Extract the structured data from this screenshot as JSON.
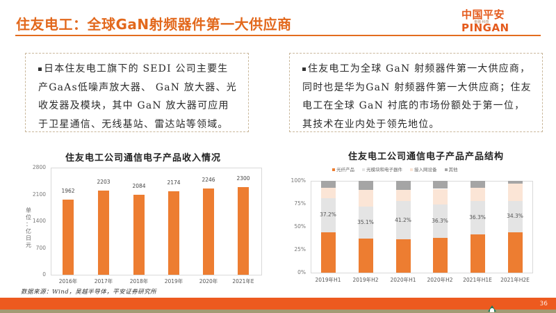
{
  "header": {
    "title": "住友电工：全球GaN射频器件第一大供应商",
    "logo_main": "中国平安 PINGAN",
    "logo_sub": "金融·科技"
  },
  "boxes": [
    {
      "text": "日本住友电工旗下的 SEDI 公司主要生产GaAs低噪声放大器、 GaN 放大器、光收发器及模块，其中 GaN 放大器可应用于卫星通信、无线基站、雷达站等领域。"
    },
    {
      "text": "住友电工为全球 GaN 射频器件第一大供应商，同时也是华为GaN 射频器件第一大供应商；住友电工在全球 GaN 衬底的市场份额处于第一位，其技术在业内处于领先地位。"
    }
  ],
  "chart_data": [
    {
      "type": "bar",
      "title": "住友电工公司通信电子产品收入情况",
      "categories": [
        "2016年",
        "2017年",
        "2018年",
        "2019年",
        "2020年",
        "2021年E"
      ],
      "values": [
        1962,
        2203,
        2084,
        2174,
        2246,
        2300
      ],
      "value_labels": [
        "1962",
        "2203",
        "2084",
        "2174",
        "2246",
        "2300"
      ],
      "xlabel": "",
      "ylabel": "单位：亿日元",
      "ylim": [
        0,
        2800
      ],
      "yticks": [
        "2800",
        "2100",
        "1400",
        "700",
        "0"
      ],
      "color": "#ed7d31",
      "grid": false
    },
    {
      "type": "bar",
      "stacked": true,
      "percent": true,
      "title": "住友电工公司通信电子产品产品结构",
      "categories": [
        "2019年H1",
        "2019年H2",
        "2020年H1",
        "2020年H2",
        "2021年H1E",
        "2021年H2E"
      ],
      "series": [
        {
          "name": "光纤产品",
          "color": "#ed7d31",
          "values": [
            44,
            37,
            36.5,
            38,
            42,
            44
          ]
        },
        {
          "name": "光模块和电子器件",
          "color": "#e4e4e4",
          "values": [
            37.2,
            35.1,
            41.2,
            36.3,
            36.3,
            34.3
          ]
        },
        {
          "name": "接入网设备",
          "color": "#fbe5d6",
          "values": [
            11,
            18,
            12.5,
            17,
            14,
            19
          ]
        },
        {
          "name": "其他",
          "color": "#a5a5a5",
          "values": [
            7.8,
            9.9,
            9.8,
            8.7,
            7.7,
            2.7
          ]
        }
      ],
      "segment_labels": [
        "37.2%",
        "35.1%",
        "41.2%",
        "36.3%",
        "36.3%",
        "34.3%"
      ],
      "yticks": [
        "100%",
        "75%",
        "50%",
        "25%",
        "0%"
      ],
      "ylim": [
        0,
        100
      ],
      "legend_position": "top",
      "grid": false
    }
  ],
  "footer": {
    "source": "数据来源：Wind，吴越半导体，平安证券研究所",
    "page_number": "36"
  }
}
